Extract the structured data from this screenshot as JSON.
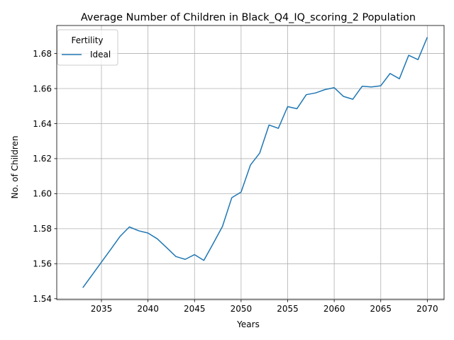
{
  "chart_data": {
    "type": "line",
    "title": "Average Number of Children in Black_Q4_IQ_scoring_2 Population",
    "xlabel": "Years",
    "ylabel": "No. of Children",
    "xlim": [
      2030.2,
      2071.8
    ],
    "ylim": [
      1.5395,
      1.696
    ],
    "xticks": [
      2035,
      2040,
      2045,
      2050,
      2055,
      2060,
      2065,
      2070
    ],
    "yticks": [
      1.54,
      1.56,
      1.58,
      1.6,
      1.62,
      1.64,
      1.66,
      1.68
    ],
    "ytick_labels": [
      "1.54",
      "1.56",
      "1.58",
      "1.60",
      "1.62",
      "1.64",
      "1.66",
      "1.68"
    ],
    "grid": true,
    "legend": {
      "title": "Fertility",
      "placement": "top-left"
    },
    "series": [
      {
        "name": "Ideal",
        "color": "#1f77b4",
        "x": [
          2033,
          2034,
          2035,
          2036,
          2037,
          2038,
          2039,
          2040,
          2041,
          2042,
          2043,
          2044,
          2045,
          2046,
          2047,
          2048,
          2049,
          2050,
          2051,
          2052,
          2053,
          2054,
          2055,
          2056,
          2057,
          2058,
          2059,
          2060,
          2061,
          2062,
          2063,
          2064,
          2065,
          2066,
          2067,
          2068,
          2069,
          2070
        ],
        "y": [
          1.5463,
          1.5536,
          1.5609,
          1.5682,
          1.5756,
          1.581,
          1.5788,
          1.5775,
          1.5742,
          1.5692,
          1.5641,
          1.5625,
          1.5652,
          1.5619,
          1.5715,
          1.5813,
          1.5977,
          1.6009,
          1.6163,
          1.6232,
          1.6392,
          1.6373,
          1.6497,
          1.6485,
          1.6565,
          1.6575,
          1.6594,
          1.6605,
          1.6555,
          1.6539,
          1.6613,
          1.6609,
          1.6616,
          1.6686,
          1.6656,
          1.679,
          1.6765,
          1.6893
        ]
      }
    ]
  }
}
